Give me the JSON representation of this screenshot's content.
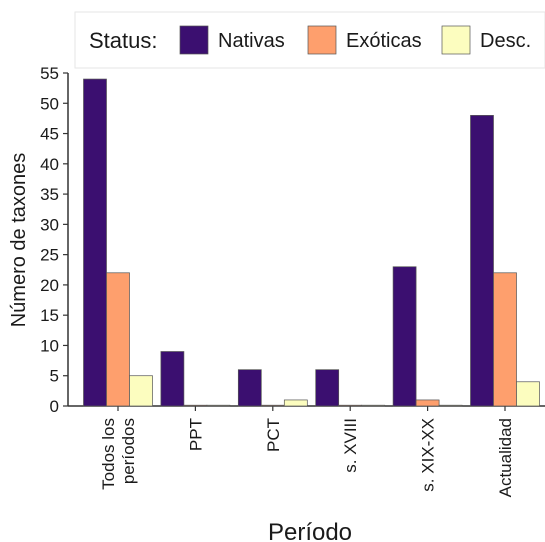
{
  "chart_data": {
    "type": "bar",
    "legend_title": "Status:",
    "legend_position": "top",
    "categories": [
      [
        "Todos los",
        "períodos"
      ],
      [
        "PPT"
      ],
      [
        "PCT"
      ],
      [
        "s. XVIII"
      ],
      [
        "s. XIX-XX"
      ],
      [
        "Actualidad"
      ]
    ],
    "series": [
      {
        "name": "Nativas",
        "color": "#3b0f70",
        "values": [
          54,
          9,
          6,
          6,
          23,
          48
        ]
      },
      {
        "name": "Exóticas",
        "color": "#fe9f6d",
        "values": [
          22,
          0,
          0,
          0,
          1,
          22
        ]
      },
      {
        "name": "Desc.",
        "color": "#fcfdbf",
        "values": [
          5,
          0,
          1,
          0,
          0,
          4
        ]
      }
    ],
    "xlabel": "Período",
    "ylabel": "Número de taxones",
    "ylim": [
      0,
      55
    ],
    "yticks": [
      0,
      5,
      10,
      15,
      20,
      25,
      30,
      35,
      40,
      45,
      50,
      55
    ],
    "grid": false
  }
}
